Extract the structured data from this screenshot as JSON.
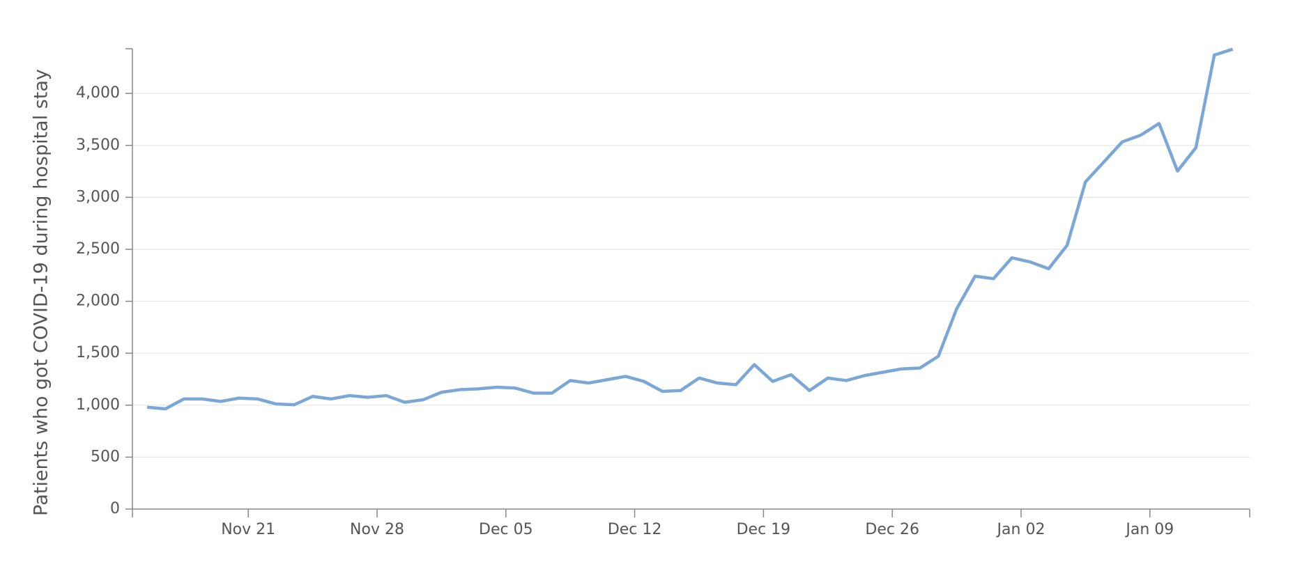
{
  "chart_data": {
    "type": "line",
    "y_label": "Patients who got COVID-19 during hospital stay",
    "categories": [
      "Nov 15",
      "Nov 16",
      "Nov 17",
      "Nov 18",
      "Nov 19",
      "Nov 20",
      "Nov 21",
      "Nov 22",
      "Nov 23",
      "Nov 24",
      "Nov 25",
      "Nov 26",
      "Nov 27",
      "Nov 28",
      "Nov 29",
      "Nov 30",
      "Dec 01",
      "Dec 02",
      "Dec 03",
      "Dec 04",
      "Dec 05",
      "Dec 06",
      "Dec 07",
      "Dec 08",
      "Dec 09",
      "Dec 10",
      "Dec 11",
      "Dec 12",
      "Dec 13",
      "Dec 14",
      "Dec 15",
      "Dec 16",
      "Dec 17",
      "Dec 18",
      "Dec 19",
      "Dec 20",
      "Dec 21",
      "Dec 22",
      "Dec 23",
      "Dec 24",
      "Dec 25",
      "Dec 26",
      "Dec 27",
      "Dec 28",
      "Dec 29",
      "Dec 30",
      "Dec 31",
      "Jan 01",
      "Jan 02",
      "Jan 03",
      "Jan 04",
      "Jan 05",
      "Jan 06",
      "Jan 07",
      "Jan 08",
      "Jan 09",
      "Jan 10",
      "Jan 11",
      "Jan 12",
      "Jan 13"
    ],
    "series": [
      {
        "name": "Patients who got COVID-19 during hospital stay",
        "color": "#7ba7d7",
        "values": [
          980,
          964,
          1060,
          1060,
          1036,
          1068,
          1060,
          1012,
          1004,
          1084,
          1060,
          1092,
          1076,
          1092,
          1028,
          1052,
          1124,
          1149,
          1157,
          1173,
          1165,
          1116,
          1116,
          1237,
          1213,
          1245,
          1277,
          1229,
          1133,
          1141,
          1261,
          1213,
          1197,
          1390,
          1229,
          1293,
          1141,
          1261,
          1237,
          1285,
          1317,
          1349,
          1357,
          1470,
          1928,
          2241,
          2217,
          2418,
          2378,
          2313,
          2538,
          3149,
          3341,
          3534,
          3598,
          3711,
          3253,
          3478,
          4369,
          4426
        ]
      }
    ],
    "xticks": [
      "Nov 21",
      "Nov 28",
      "Dec 05",
      "Dec 12",
      "Dec 19",
      "Dec 26",
      "Jan 02",
      "Jan 09"
    ],
    "ylim": [
      0,
      4430
    ],
    "yticks": [
      0,
      500,
      {
        "value": 1000,
        "label": "1,000"
      },
      {
        "value": 1500,
        "label": "1,500"
      },
      {
        "value": 2000,
        "label": "2,000"
      },
      {
        "value": 2500,
        "label": "2,500"
      },
      {
        "value": 3000,
        "label": "3,000"
      },
      {
        "value": 3500,
        "label": "3,500"
      },
      {
        "value": 4000,
        "label": "4,000"
      }
    ],
    "grid": true
  }
}
